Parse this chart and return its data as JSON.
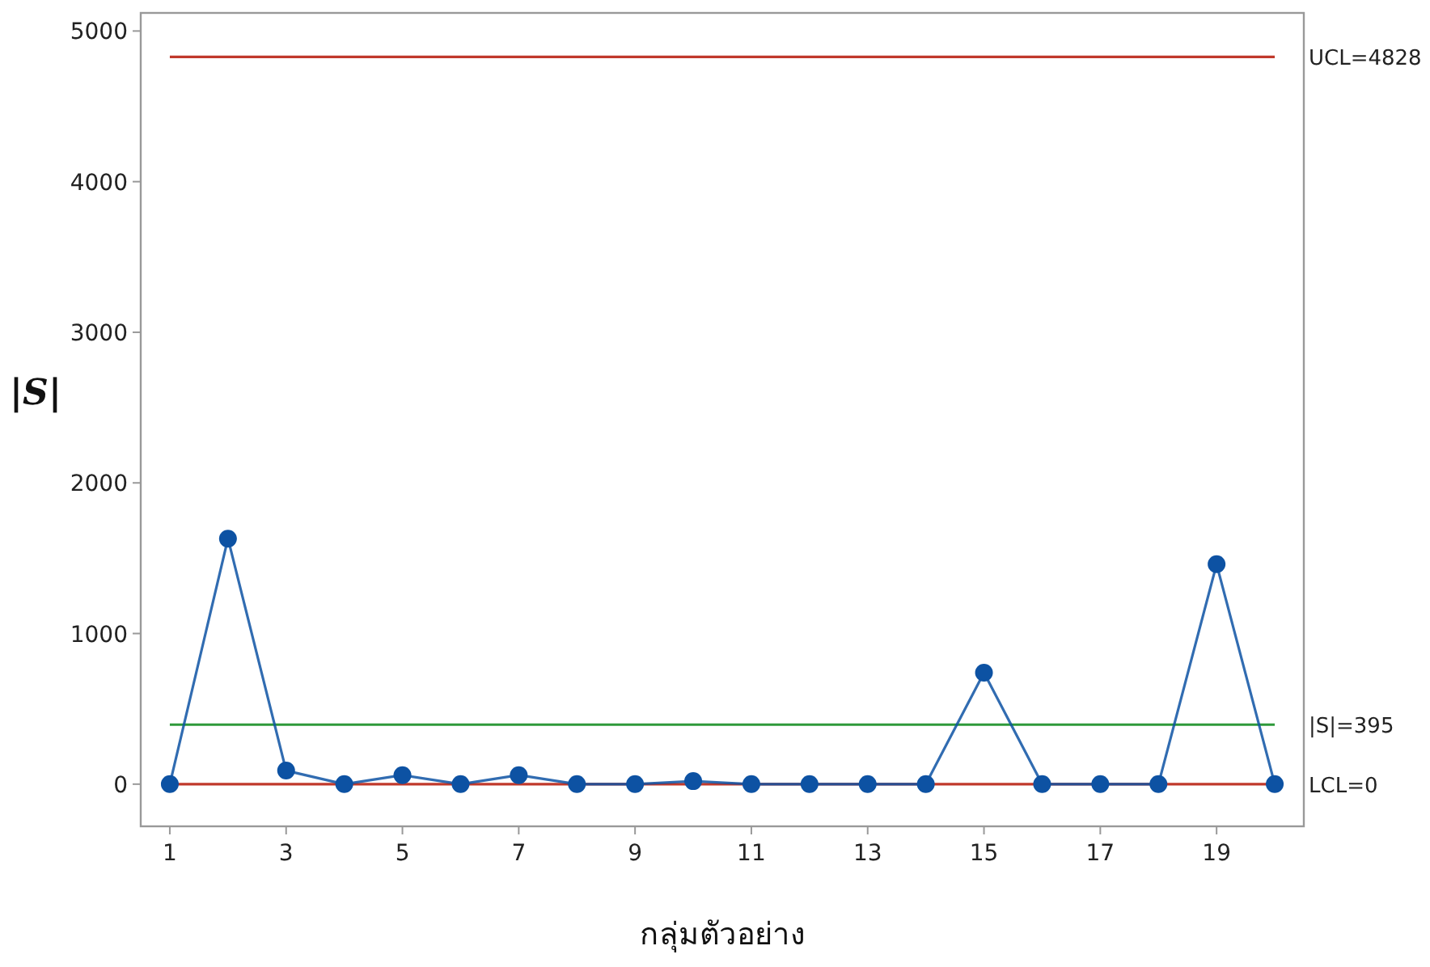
{
  "chart_data": {
    "type": "line",
    "xlabel": "กลุ่มตัวอย่าง",
    "ylabel": "|S|",
    "x": [
      1,
      2,
      3,
      4,
      5,
      6,
      7,
      8,
      9,
      10,
      11,
      12,
      13,
      14,
      15,
      16,
      17,
      18,
      19,
      20
    ],
    "series": [
      {
        "color": "#0d52a3",
        "values": [
          0,
          1630,
          90,
          0,
          60,
          0,
          60,
          0,
          0,
          20,
          0,
          0,
          0,
          0,
          740,
          0,
          0,
          0,
          1460,
          0
        ]
      }
    ],
    "xlim": [
      0.5,
      20.5
    ],
    "xticks": [
      1,
      3,
      5,
      7,
      9,
      11,
      13,
      15,
      17,
      19
    ],
    "ylim": [
      -280,
      5120
    ],
    "yticks": [
      0,
      1000,
      2000,
      3000,
      4000,
      5000
    ],
    "ref_lines": [
      {
        "axis": "y",
        "value": 4828,
        "label": "UCL=4828",
        "color": "#c0392b"
      },
      {
        "axis": "y",
        "value": 395,
        "label": "|S|=395",
        "color": "#2e9a3a"
      },
      {
        "axis": "y",
        "value": 0,
        "label": "LCL=0",
        "color": "#c0392b"
      }
    ],
    "grid": false,
    "marker": "circle",
    "line_style": "solid"
  }
}
